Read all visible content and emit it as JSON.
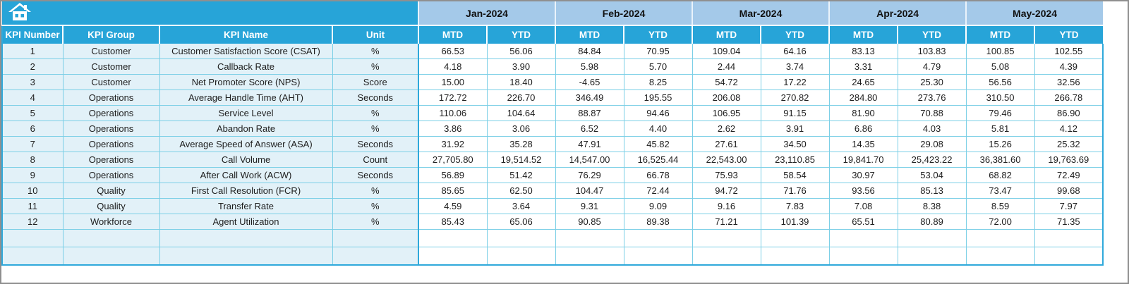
{
  "toolbar": {
    "home_button": "home"
  },
  "colors": {
    "cyan": "#27A4D8",
    "cyan_strong": "#2FA9DB",
    "month_band": "#A4C9E9",
    "left_cell_bg": "#E2F1F8",
    "grid_line": "#7BCFE6",
    "frame": "#8F8F8F",
    "header_text": "#FFFFFF",
    "body_text": "#1D1D1D"
  },
  "table": {
    "left_headers": [
      "KPI Number",
      "KPI Group",
      "KPI Name",
      "Unit"
    ],
    "months": [
      "Jan-2024",
      "Feb-2024",
      "Mar-2024",
      "Apr-2024",
      "May-2024"
    ],
    "sub_headers": [
      "MTD",
      "YTD"
    ],
    "rows": [
      {
        "number": "1",
        "group": "Customer",
        "name": "Customer Satisfaction Score (CSAT)",
        "unit": "%",
        "values": [
          "66.53",
          "56.06",
          "84.84",
          "70.95",
          "109.04",
          "64.16",
          "83.13",
          "103.83",
          "100.85",
          "102.55"
        ]
      },
      {
        "number": "2",
        "group": "Customer",
        "name": "Callback Rate",
        "unit": "%",
        "values": [
          "4.18",
          "3.90",
          "5.98",
          "5.70",
          "2.44",
          "3.74",
          "3.31",
          "4.79",
          "5.08",
          "4.39"
        ]
      },
      {
        "number": "3",
        "group": "Customer",
        "name": "Net Promoter Score (NPS)",
        "unit": "Score",
        "values": [
          "15.00",
          "18.40",
          "-4.65",
          "8.25",
          "54.72",
          "17.22",
          "24.65",
          "25.30",
          "56.56",
          "32.56"
        ]
      },
      {
        "number": "4",
        "group": "Operations",
        "name": "Average Handle Time (AHT)",
        "unit": "Seconds",
        "values": [
          "172.72",
          "226.70",
          "346.49",
          "195.55",
          "206.08",
          "270.82",
          "284.80",
          "273.76",
          "310.50",
          "266.78"
        ]
      },
      {
        "number": "5",
        "group": "Operations",
        "name": "Service Level",
        "unit": "%",
        "values": [
          "110.06",
          "104.64",
          "88.87",
          "94.46",
          "106.95",
          "91.15",
          "81.90",
          "70.88",
          "79.46",
          "86.90"
        ]
      },
      {
        "number": "6",
        "group": "Operations",
        "name": "Abandon Rate",
        "unit": "%",
        "values": [
          "3.86",
          "3.06",
          "6.52",
          "4.40",
          "2.62",
          "3.91",
          "6.86",
          "4.03",
          "5.81",
          "4.12"
        ]
      },
      {
        "number": "7",
        "group": "Operations",
        "name": "Average Speed of Answer (ASA)",
        "unit": "Seconds",
        "values": [
          "31.92",
          "35.28",
          "47.91",
          "45.82",
          "27.61",
          "34.50",
          "14.35",
          "29.08",
          "15.26",
          "25.32"
        ]
      },
      {
        "number": "8",
        "group": "Operations",
        "name": "Call Volume",
        "unit": "Count",
        "values": [
          "27,705.80",
          "19,514.52",
          "14,547.00",
          "16,525.44",
          "22,543.00",
          "23,110.85",
          "19,841.70",
          "25,423.22",
          "36,381.60",
          "19,763.69"
        ]
      },
      {
        "number": "9",
        "group": "Operations",
        "name": "After Call Work (ACW)",
        "unit": "Seconds",
        "values": [
          "56.89",
          "51.42",
          "76.29",
          "66.78",
          "75.93",
          "58.54",
          "30.97",
          "53.04",
          "68.82",
          "72.49"
        ]
      },
      {
        "number": "10",
        "group": "Quality",
        "name": "First Call Resolution (FCR)",
        "unit": "%",
        "values": [
          "85.65",
          "62.50",
          "104.47",
          "72.44",
          "94.72",
          "71.76",
          "93.56",
          "85.13",
          "73.47",
          "99.68"
        ]
      },
      {
        "number": "11",
        "group": "Quality",
        "name": "Transfer Rate",
        "unit": "%",
        "values": [
          "4.59",
          "3.64",
          "9.31",
          "9.09",
          "9.16",
          "7.83",
          "7.08",
          "8.38",
          "8.59",
          "7.97"
        ]
      },
      {
        "number": "12",
        "group": "Workforce",
        "name": "Agent Utilization",
        "unit": "%",
        "values": [
          "85.43",
          "65.06",
          "90.85",
          "89.38",
          "71.21",
          "101.39",
          "65.51",
          "80.89",
          "72.00",
          "71.35"
        ]
      }
    ],
    "empty_row_count": 2
  }
}
